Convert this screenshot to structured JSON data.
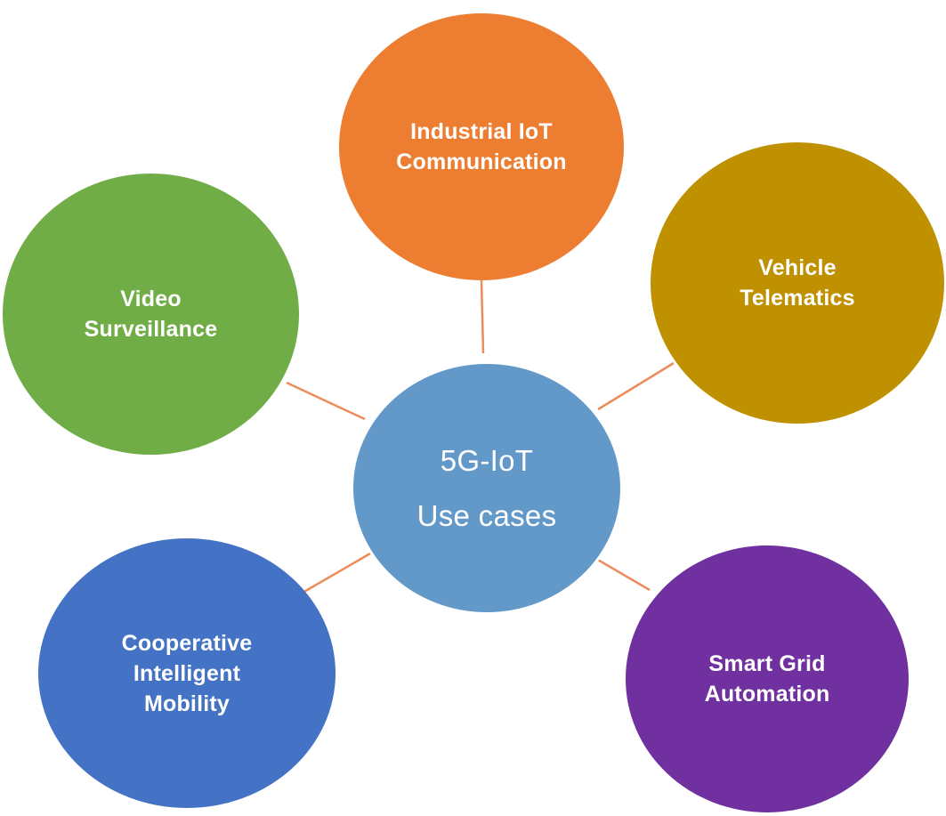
{
  "diagram": {
    "connector_color": "#ED8C5A",
    "center": {
      "lines": [
        "5G-IoT",
        "Use cases"
      ],
      "color": "#6399C9"
    },
    "nodes": [
      {
        "id": "industrial-iot",
        "lines": [
          "Industrial IoT",
          "Communication"
        ],
        "color": "#ED7D31"
      },
      {
        "id": "vehicle-telematics",
        "lines": [
          "Vehicle",
          "Telematics"
        ],
        "color": "#BF9000"
      },
      {
        "id": "smart-grid",
        "lines": [
          "Smart Grid",
          "Automation"
        ],
        "color": "#7030A0"
      },
      {
        "id": "cooperative-mobility",
        "lines": [
          "Cooperative",
          "Intelligent",
          "Mobility"
        ],
        "color": "#4472C4"
      },
      {
        "id": "video-surveillance",
        "lines": [
          "Video",
          "Surveillance"
        ],
        "color": "#70AD47"
      }
    ]
  }
}
